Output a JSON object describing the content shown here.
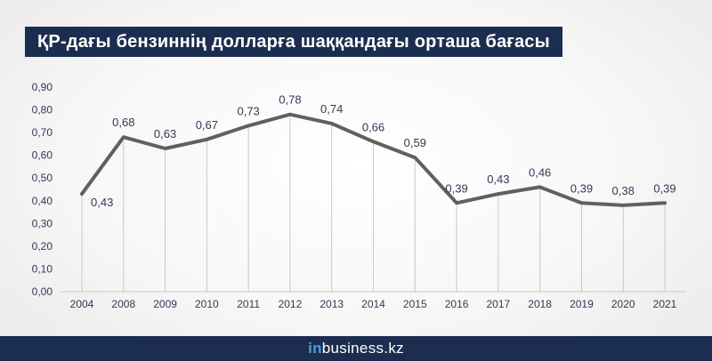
{
  "brand": {
    "prefix": "in",
    "name": "business.kz"
  },
  "colors": {
    "title_bg": "#1c2e4f",
    "footer_bg": "#1c2e4f",
    "line": "#606060",
    "grid": "#c8c8c8",
    "text": "#2f3a55",
    "brand_accent": "#4a9fe0"
  },
  "chart_data": {
    "type": "line",
    "title": "ҚР-дағы бензиннің долларға шаққандағы орташа бағасы",
    "xlabel": "",
    "ylabel": "",
    "categories": [
      "2004",
      "2008",
      "2009",
      "2010",
      "2011",
      "2012",
      "2013",
      "2014",
      "2015",
      "2016",
      "2017",
      "2018",
      "2019",
      "2020",
      "2021"
    ],
    "series": [
      {
        "values": [
          0.43,
          0.68,
          0.63,
          0.67,
          0.73,
          0.78,
          0.74,
          0.66,
          0.59,
          0.39,
          0.43,
          0.46,
          0.39,
          0.38,
          0.39
        ]
      }
    ],
    "data_labels": [
      "0,43",
      "0,68",
      "0,63",
      "0,67",
      "0,73",
      "0,78",
      "0,74",
      "0,66",
      "0,59",
      "0,39",
      "0,43",
      "0,46",
      "0,39",
      "0,38",
      "0,39"
    ],
    "y_ticks": [
      "0,00",
      "0,10",
      "0,20",
      "0,30",
      "0,40",
      "0,50",
      "0,60",
      "0,70",
      "0,80",
      "0,90"
    ],
    "ylim": [
      0,
      0.9
    ],
    "grid": false,
    "legend": "none"
  }
}
